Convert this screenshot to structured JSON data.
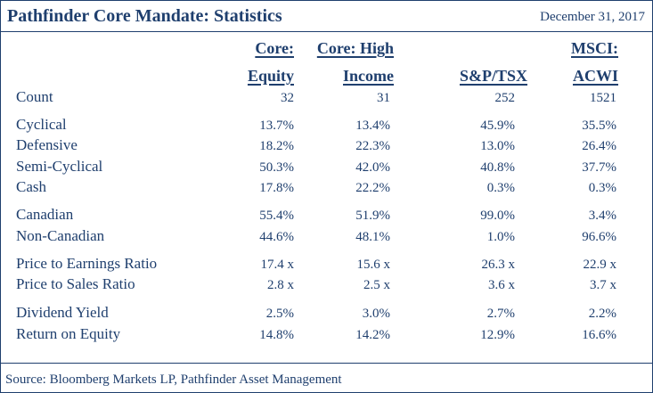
{
  "title": "Pathfinder Core Mandate: Statistics",
  "date": "December 31, 2017",
  "columns": [
    {
      "line1": "Core:",
      "line2": "Equity"
    },
    {
      "line1": "Core: High",
      "line2": "Income"
    },
    {
      "line1": "",
      "line2": "S&P/TSX"
    },
    {
      "line1": "MSCI:",
      "line2": "ACWI"
    }
  ],
  "rows": [
    {
      "label": "Count",
      "values": [
        "32",
        "31",
        "252",
        "1521"
      ]
    },
    {
      "label": "Cyclical",
      "values": [
        "13.7%",
        "13.4%",
        "45.9%",
        "35.5%"
      ]
    },
    {
      "label": "Defensive",
      "values": [
        "18.2%",
        "22.3%",
        "13.0%",
        "26.4%"
      ]
    },
    {
      "label": "Semi-Cyclical",
      "values": [
        "50.3%",
        "42.0%",
        "40.8%",
        "37.7%"
      ]
    },
    {
      "label": "Cash",
      "values": [
        "17.8%",
        "22.2%",
        "0.3%",
        "0.3%"
      ]
    },
    {
      "label": "Canadian",
      "values": [
        "55.4%",
        "51.9%",
        "99.0%",
        "3.4%"
      ]
    },
    {
      "label": "Non-Canadian",
      "values": [
        "44.6%",
        "48.1%",
        "1.0%",
        "96.6%"
      ]
    },
    {
      "label": "Price to Earnings Ratio",
      "values": [
        "17.4 x",
        "15.6 x",
        "26.3 x",
        "22.9 x"
      ]
    },
    {
      "label": "Price to Sales Ratio",
      "values": [
        "2.8 x",
        "2.5 x",
        "3.6 x",
        "3.7 x"
      ]
    },
    {
      "label": "Dividend Yield",
      "values": [
        "2.5%",
        "3.0%",
        "2.7%",
        "2.2%"
      ]
    },
    {
      "label": "Return on Equity",
      "values": [
        "14.8%",
        "14.2%",
        "12.9%",
        "16.6%"
      ]
    }
  ],
  "source": "Source: Bloomberg Markets LP, Pathfinder Asset Management",
  "colors": {
    "text": "#1f3f6e",
    "border": "#1f3f6e",
    "background": "#ffffff"
  }
}
